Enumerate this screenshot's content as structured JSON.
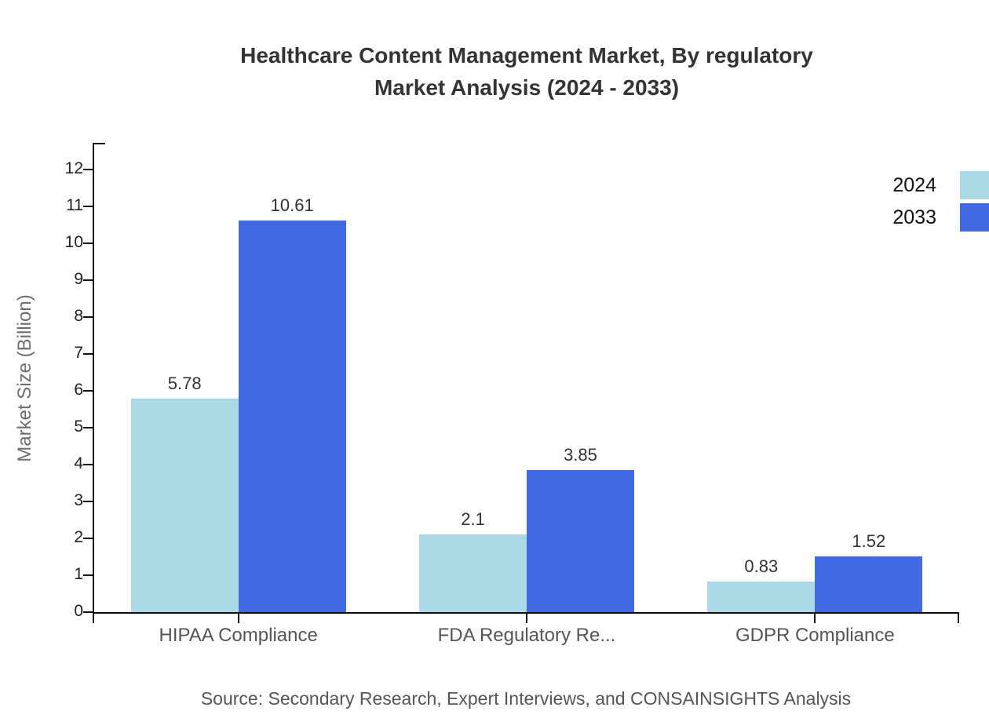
{
  "title": {
    "line1": "Healthcare Content Management Market, By regulatory",
    "line2": "Market Analysis (2024 - 2033)"
  },
  "source": "Source: Secondary Research, Expert Interviews, and CONSAINSIGHTS Analysis",
  "legend": [
    {
      "label": "2024",
      "color": "#ADD8E6"
    },
    {
      "label": "2033",
      "color": "#4169E1"
    }
  ],
  "chart_data": {
    "type": "bar",
    "title": "Healthcare Content Management Market, By regulatory Market Analysis (2024 - 2033)",
    "categories": [
      "HIPAA Compliance",
      "FDA Regulatory Re...",
      "GDPR Compliance"
    ],
    "series": [
      {
        "name": "2024",
        "color": "#ADD8E6",
        "values": [
          5.78,
          2.1,
          0.83
        ]
      },
      {
        "name": "2033",
        "color": "#4169E1",
        "values": [
          10.61,
          3.85,
          1.52
        ]
      }
    ],
    "xlabel": "",
    "ylabel": "Market Size (Billion)",
    "yticks": [
      0,
      1,
      2,
      3,
      4,
      5,
      6,
      7,
      8,
      9,
      10,
      11,
      12
    ],
    "ylim": [
      0,
      12.7
    ],
    "grid": false,
    "legend_position": "top-right",
    "value_labels": true
  }
}
